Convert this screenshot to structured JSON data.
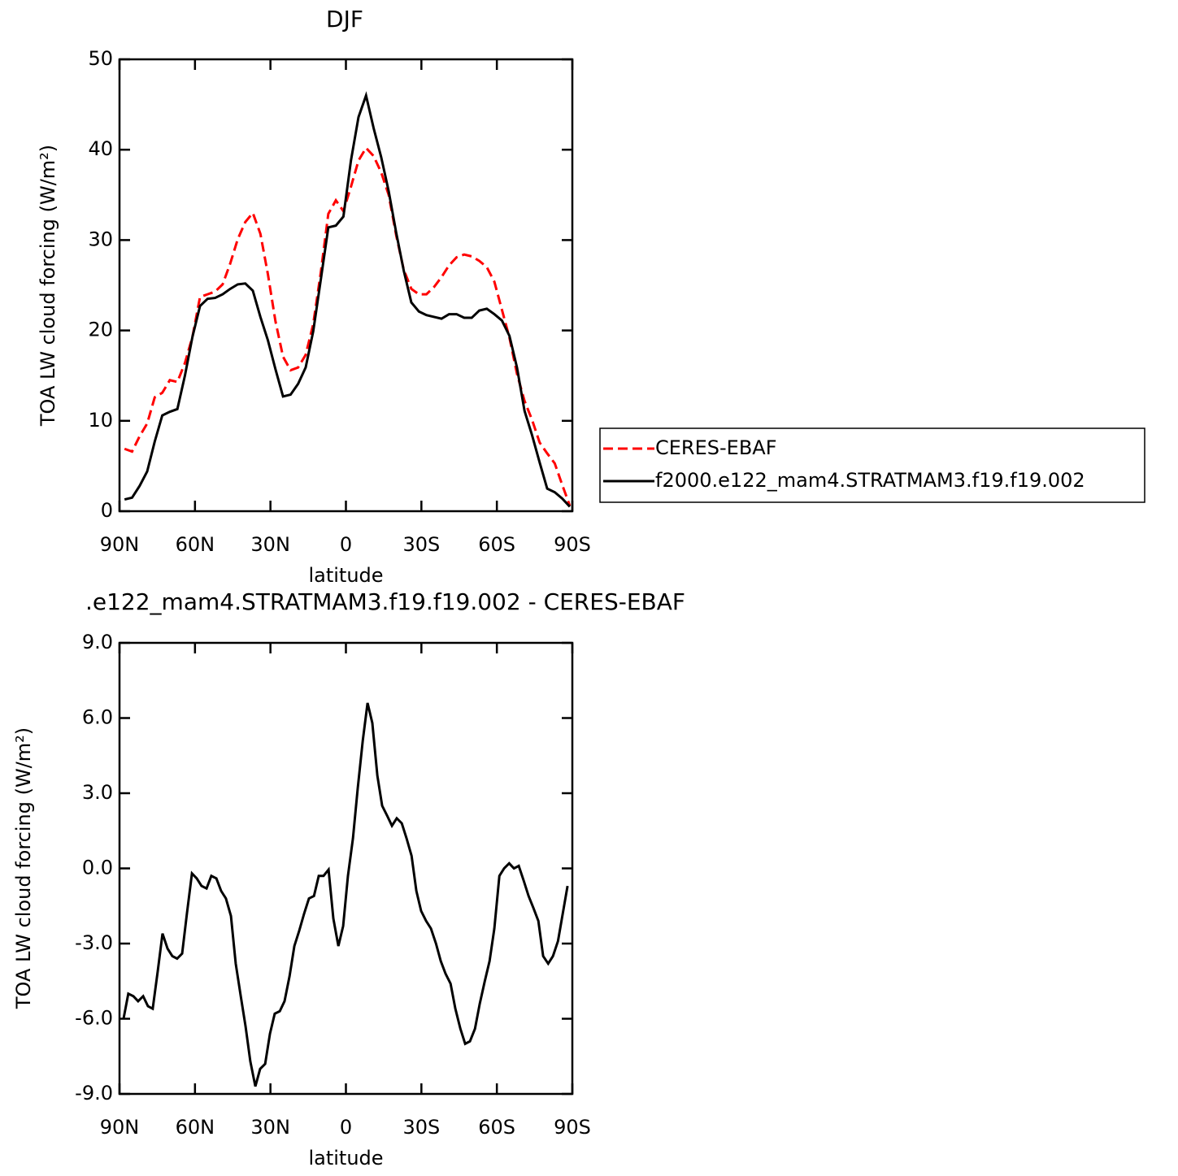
{
  "chart_data": [
    {
      "type": "line",
      "title": "DJF",
      "x_label": "latitude",
      "y_label": "TOA LW cloud forcing (W/m²)",
      "x": [
        88,
        85,
        82,
        79,
        76,
        73,
        70,
        67,
        64,
        61,
        58,
        55,
        52,
        49,
        46,
        43,
        40,
        37,
        34,
        31,
        28,
        25,
        22,
        19,
        16,
        13,
        10,
        7,
        4,
        1,
        -2,
        -5,
        -8,
        -11,
        -14,
        -17,
        -20,
        -23,
        -26,
        -29,
        -32,
        -35,
        -38,
        -41,
        -44,
        -47,
        -50,
        -53,
        -56,
        -59,
        -62,
        -65,
        -68,
        -71,
        -74,
        -77,
        -80,
        -83,
        -86,
        -89
      ],
      "series": [
        {
          "name": "CERES-EBAF",
          "color": "#ff0000",
          "line_style": "dashed",
          "values": [
            6.9,
            6.6,
            8.3,
            9.7,
            12.6,
            13.1,
            14.5,
            14.3,
            16.4,
            19.3,
            23.7,
            24.0,
            24.3,
            25.1,
            27.4,
            30.1,
            32.0,
            33.0,
            30.7,
            26.2,
            21.0,
            17.1,
            15.6,
            15.9,
            17.3,
            20.7,
            26.4,
            32.9,
            34.4,
            33.2,
            35.9,
            38.8,
            40.2,
            39.3,
            37.5,
            35.0,
            30.5,
            26.7,
            24.6,
            24.0,
            24.0,
            24.8,
            25.9,
            27.2,
            28.1,
            28.4,
            28.2,
            27.7,
            27.0,
            25.4,
            22.3,
            19.2,
            15.2,
            12.2,
            10.1,
            7.6,
            6.4,
            5.3,
            2.9,
            0.6
          ]
        },
        {
          "name": "f2000.e122_mam4.STRATMAM3.f19.f19.002",
          "color": "#000000",
          "line_style": "solid",
          "values": [
            1.3,
            1.5,
            2.8,
            4.4,
            7.7,
            10.6,
            11.0,
            11.3,
            15.0,
            19.3,
            22.7,
            23.5,
            23.6,
            24.0,
            24.6,
            25.1,
            25.2,
            24.4,
            21.5,
            18.9,
            15.7,
            12.7,
            12.9,
            14.1,
            15.9,
            19.9,
            25.6,
            31.4,
            31.6,
            32.6,
            38.8,
            43.6,
            46.0,
            42.4,
            39.2,
            35.4,
            30.8,
            26.6,
            23.1,
            22.1,
            21.7,
            21.5,
            21.3,
            21.8,
            21.8,
            21.4,
            21.4,
            22.2,
            22.4,
            21.8,
            21.1,
            19.4,
            15.9,
            11.1,
            8.4,
            5.4,
            2.5,
            2.1,
            1.4,
            0.5
          ]
        }
      ],
      "xlim": [
        90,
        -90
      ],
      "xticks": [
        {
          "value": 90,
          "label": "90N"
        },
        {
          "value": 60,
          "label": "60N"
        },
        {
          "value": 30,
          "label": "30N"
        },
        0,
        {
          "value": -30,
          "label": "30S"
        },
        {
          "value": -60,
          "label": "60S"
        },
        {
          "value": -90,
          "label": "90S"
        }
      ],
      "ylim": [
        0,
        50
      ],
      "yticks": [
        0,
        10,
        20,
        30,
        40,
        50
      ],
      "legend": "right"
    },
    {
      "type": "line",
      "title": ".e122_mam4.STRATMAM3.f19.f19.002 - CERES-EBAF",
      "x_label": "latitude",
      "y_label": "TOA LW cloud forcing (W/m²)",
      "x": [
        88.4,
        86.5,
        84.5,
        82.6,
        80.6,
        78.7,
        76.8,
        74.8,
        72.9,
        70.9,
        69.0,
        67.1,
        65.1,
        63.2,
        61.2,
        59.3,
        57.4,
        55.4,
        53.5,
        51.5,
        49.6,
        47.7,
        45.7,
        43.8,
        41.8,
        39.9,
        38.0,
        36.0,
        34.1,
        32.1,
        30.2,
        28.3,
        26.3,
        24.4,
        22.4,
        20.5,
        18.6,
        16.6,
        14.7,
        12.7,
        10.8,
        8.9,
        6.9,
        5.0,
        3.0,
        1.1,
        -0.8,
        -2.8,
        -4.7,
        -6.7,
        -8.6,
        -10.5,
        -12.5,
        -14.4,
        -16.4,
        -18.3,
        -20.2,
        -22.2,
        -24.1,
        -26.1,
        -28.0,
        -29.9,
        -31.9,
        -33.8,
        -35.8,
        -37.7,
        -39.6,
        -41.6,
        -43.5,
        -45.5,
        -47.4,
        -49.3,
        -51.3,
        -53.2,
        -55.2,
        -57.1,
        -59.0,
        -61.0,
        -62.9,
        -64.9,
        -66.8,
        -68.7,
        -70.7,
        -72.6,
        -74.6,
        -76.5,
        -78.4,
        -80.4,
        -82.3,
        -84.3,
        -86.2,
        -88.1
      ],
      "series": [
        {
          "color": "#000000",
          "line_style": "solid",
          "values": [
            -6.0,
            -5.0,
            -5.1,
            -5.3,
            -5.1,
            -5.5,
            -5.6,
            -4.1,
            -2.6,
            -3.2,
            -3.5,
            -3.6,
            -3.4,
            -1.8,
            -0.2,
            -0.4,
            -0.7,
            -0.8,
            -0.3,
            -0.4,
            -0.9,
            -1.2,
            -1.9,
            -3.8,
            -5.1,
            -6.3,
            -7.7,
            -8.7,
            -8.0,
            -7.8,
            -6.6,
            -5.8,
            -5.7,
            -5.3,
            -4.3,
            -3.1,
            -2.5,
            -1.8,
            -1.2,
            -1.1,
            -0.3,
            -0.3,
            -0.05,
            -2.0,
            -3.1,
            -2.3,
            -0.3,
            1.2,
            3.2,
            5.1,
            6.6,
            5.8,
            3.7,
            2.5,
            2.1,
            1.7,
            2.0,
            1.8,
            1.2,
            0.5,
            -0.9,
            -1.7,
            -2.1,
            -2.4,
            -3.0,
            -3.7,
            -4.2,
            -4.6,
            -5.6,
            -6.4,
            -7.0,
            -6.9,
            -6.4,
            -5.4,
            -4.5,
            -3.7,
            -2.4,
            -0.3,
            0.0,
            0.2,
            0.0,
            0.1,
            -0.5,
            -1.1,
            -1.6,
            -2.1,
            -3.5,
            -3.8,
            -3.5,
            -2.9,
            -1.8,
            -0.7
          ]
        }
      ],
      "xlim": [
        90,
        -90
      ],
      "xticks": [
        {
          "value": 90,
          "label": "90N"
        },
        {
          "value": 60,
          "label": "60N"
        },
        {
          "value": 30,
          "label": "30N"
        },
        0,
        {
          "value": -30,
          "label": "30S"
        },
        {
          "value": -60,
          "label": "60S"
        },
        {
          "value": -90,
          "label": "90S"
        }
      ],
      "ylim": [
        -9,
        9
      ],
      "yticks": [
        {
          "value": -9,
          "label": "-9.0"
        },
        {
          "value": -6,
          "label": "-6.0"
        },
        {
          "value": -3,
          "label": "-3.0"
        },
        {
          "value": 0,
          "label": "0.0"
        },
        {
          "value": 3,
          "label": "3.0"
        },
        {
          "value": 6,
          "label": "6.0"
        },
        {
          "value": 9,
          "label": "9.0"
        }
      ]
    }
  ]
}
